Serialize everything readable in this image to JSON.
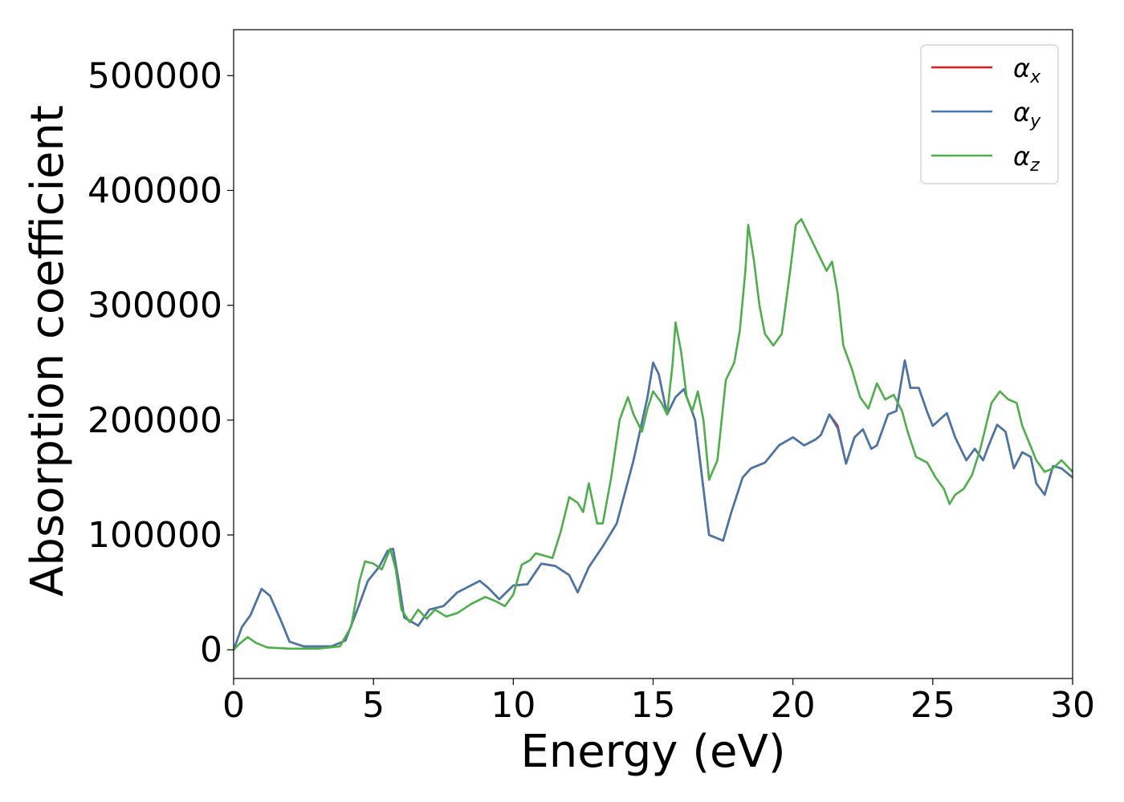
{
  "chart_data": {
    "type": "line",
    "xlabel": "Energy (eV)",
    "ylabel": "Absorption coefficient",
    "xlim": [
      0,
      30
    ],
    "ylim": [
      -25000,
      540000
    ],
    "x_ticks": [
      0,
      5,
      10,
      15,
      20,
      25,
      30
    ],
    "x_tick_labels": [
      "0",
      "5",
      "10",
      "15",
      "20",
      "25",
      "30"
    ],
    "y_ticks": [
      0,
      100000,
      200000,
      300000,
      400000,
      500000
    ],
    "y_tick_labels": [
      "0",
      "100000",
      "200000",
      "300000",
      "400000",
      "500000"
    ],
    "legend_position": "top-right",
    "grid": false,
    "series": [
      {
        "name": "α",
        "subscript": "x",
        "color": "#e41a1c",
        "points": [
          [
            0,
            0
          ],
          [
            0.3,
            20000
          ],
          [
            0.6,
            30000
          ],
          [
            1.0,
            53000
          ],
          [
            1.3,
            47000
          ],
          [
            1.7,
            25000
          ],
          [
            2.0,
            7000
          ],
          [
            2.5,
            3000
          ],
          [
            3.5,
            3000
          ],
          [
            4.0,
            8000
          ],
          [
            4.5,
            40000
          ],
          [
            4.8,
            60000
          ],
          [
            5.2,
            72000
          ],
          [
            5.5,
            86000
          ],
          [
            5.7,
            88000
          ],
          [
            5.9,
            60000
          ],
          [
            6.1,
            28000
          ],
          [
            6.6,
            21000
          ],
          [
            7.0,
            35000
          ],
          [
            7.5,
            38000
          ],
          [
            8.0,
            50000
          ],
          [
            8.4,
            55000
          ],
          [
            8.8,
            60000
          ],
          [
            9.1,
            54000
          ],
          [
            9.5,
            44000
          ],
          [
            10.0,
            56000
          ],
          [
            10.5,
            57000
          ],
          [
            11.0,
            75000
          ],
          [
            11.5,
            73000
          ],
          [
            12.0,
            65000
          ],
          [
            12.3,
            50000
          ],
          [
            12.7,
            72000
          ],
          [
            13.2,
            90000
          ],
          [
            13.7,
            110000
          ],
          [
            14.3,
            165000
          ],
          [
            14.8,
            220000
          ],
          [
            15.0,
            250000
          ],
          [
            15.2,
            240000
          ],
          [
            15.5,
            205000
          ],
          [
            15.8,
            220000
          ],
          [
            16.1,
            227000
          ],
          [
            16.5,
            200000
          ],
          [
            16.8,
            140000
          ],
          [
            17.0,
            100000
          ],
          [
            17.5,
            95000
          ],
          [
            17.8,
            120000
          ],
          [
            18.2,
            150000
          ],
          [
            18.5,
            158000
          ],
          [
            19.0,
            163000
          ],
          [
            19.5,
            178000
          ],
          [
            20.0,
            185000
          ],
          [
            20.4,
            178000
          ],
          [
            20.8,
            183000
          ],
          [
            21.0,
            187000
          ],
          [
            21.3,
            205000
          ],
          [
            21.6,
            195000
          ],
          [
            21.9,
            162000
          ],
          [
            22.2,
            185000
          ],
          [
            22.5,
            192000
          ],
          [
            22.8,
            175000
          ],
          [
            23.0,
            178000
          ],
          [
            23.4,
            205000
          ],
          [
            23.7,
            208000
          ],
          [
            24.0,
            252000
          ],
          [
            24.2,
            228000
          ],
          [
            24.5,
            228000
          ],
          [
            24.8,
            207000
          ],
          [
            25.0,
            195000
          ],
          [
            25.5,
            206000
          ],
          [
            25.8,
            185000
          ],
          [
            26.2,
            165000
          ],
          [
            26.5,
            175000
          ],
          [
            26.8,
            165000
          ],
          [
            27.0,
            178000
          ],
          [
            27.3,
            196000
          ],
          [
            27.6,
            190000
          ],
          [
            27.9,
            158000
          ],
          [
            28.2,
            172000
          ],
          [
            28.5,
            168000
          ],
          [
            28.7,
            145000
          ],
          [
            29.0,
            135000
          ],
          [
            29.3,
            160000
          ],
          [
            29.6,
            158000
          ],
          [
            30.0,
            150000
          ]
        ]
      },
      {
        "name": "α",
        "subscript": "y",
        "color": "#4477aa",
        "points": [
          [
            0,
            0
          ],
          [
            0.3,
            20000
          ],
          [
            0.6,
            30000
          ],
          [
            1.0,
            53000
          ],
          [
            1.3,
            47000
          ],
          [
            1.7,
            25000
          ],
          [
            2.0,
            7000
          ],
          [
            2.5,
            3000
          ],
          [
            3.5,
            3000
          ],
          [
            4.0,
            8000
          ],
          [
            4.5,
            40000
          ],
          [
            4.8,
            60000
          ],
          [
            5.2,
            72000
          ],
          [
            5.5,
            86000
          ],
          [
            5.7,
            88000
          ],
          [
            5.9,
            60000
          ],
          [
            6.1,
            28000
          ],
          [
            6.6,
            21000
          ],
          [
            7.0,
            35000
          ],
          [
            7.5,
            38000
          ],
          [
            8.0,
            50000
          ],
          [
            8.4,
            55000
          ],
          [
            8.8,
            60000
          ],
          [
            9.1,
            54000
          ],
          [
            9.5,
            44000
          ],
          [
            10.0,
            56000
          ],
          [
            10.5,
            57000
          ],
          [
            11.0,
            75000
          ],
          [
            11.5,
            73000
          ],
          [
            12.0,
            65000
          ],
          [
            12.3,
            50000
          ],
          [
            12.7,
            72000
          ],
          [
            13.2,
            90000
          ],
          [
            13.7,
            110000
          ],
          [
            14.3,
            165000
          ],
          [
            14.8,
            220000
          ],
          [
            15.0,
            250000
          ],
          [
            15.2,
            240000
          ],
          [
            15.5,
            205000
          ],
          [
            15.8,
            220000
          ],
          [
            16.1,
            227000
          ],
          [
            16.5,
            200000
          ],
          [
            16.8,
            140000
          ],
          [
            17.0,
            100000
          ],
          [
            17.5,
            95000
          ],
          [
            17.8,
            120000
          ],
          [
            18.2,
            150000
          ],
          [
            18.5,
            158000
          ],
          [
            19.0,
            163000
          ],
          [
            19.5,
            178000
          ],
          [
            20.0,
            185000
          ],
          [
            20.4,
            178000
          ],
          [
            20.8,
            183000
          ],
          [
            21.0,
            187000
          ],
          [
            21.3,
            205000
          ],
          [
            21.6,
            193000
          ],
          [
            21.9,
            162000
          ],
          [
            22.2,
            185000
          ],
          [
            22.5,
            192000
          ],
          [
            22.8,
            175000
          ],
          [
            23.0,
            178000
          ],
          [
            23.4,
            205000
          ],
          [
            23.7,
            208000
          ],
          [
            24.0,
            252000
          ],
          [
            24.2,
            228000
          ],
          [
            24.5,
            228000
          ],
          [
            24.8,
            207000
          ],
          [
            25.0,
            195000
          ],
          [
            25.5,
            206000
          ],
          [
            25.8,
            185000
          ],
          [
            26.2,
            165000
          ],
          [
            26.5,
            175000
          ],
          [
            26.8,
            165000
          ],
          [
            27.0,
            178000
          ],
          [
            27.3,
            196000
          ],
          [
            27.6,
            190000
          ],
          [
            27.9,
            158000
          ],
          [
            28.2,
            172000
          ],
          [
            28.5,
            168000
          ],
          [
            28.7,
            145000
          ],
          [
            29.0,
            135000
          ],
          [
            29.3,
            160000
          ],
          [
            29.6,
            158000
          ],
          [
            30.0,
            150000
          ]
        ]
      },
      {
        "name": "α",
        "subscript": "z",
        "color": "#4daf4a",
        "points": [
          [
            0,
            0
          ],
          [
            0.2,
            5000
          ],
          [
            0.5,
            11000
          ],
          [
            0.8,
            6000
          ],
          [
            1.2,
            2000
          ],
          [
            2.0,
            1000
          ],
          [
            3.0,
            1000
          ],
          [
            3.8,
            3000
          ],
          [
            4.2,
            20000
          ],
          [
            4.5,
            60000
          ],
          [
            4.7,
            77000
          ],
          [
            5.0,
            75000
          ],
          [
            5.3,
            70000
          ],
          [
            5.6,
            88000
          ],
          [
            5.8,
            70000
          ],
          [
            6.0,
            35000
          ],
          [
            6.3,
            24000
          ],
          [
            6.6,
            35000
          ],
          [
            6.9,
            27000
          ],
          [
            7.2,
            35000
          ],
          [
            7.6,
            29000
          ],
          [
            8.0,
            32000
          ],
          [
            8.5,
            40000
          ],
          [
            9.0,
            46000
          ],
          [
            9.4,
            42000
          ],
          [
            9.7,
            38000
          ],
          [
            10.0,
            48000
          ],
          [
            10.3,
            74000
          ],
          [
            10.6,
            78000
          ],
          [
            10.8,
            84000
          ],
          [
            11.1,
            82000
          ],
          [
            11.4,
            80000
          ],
          [
            11.7,
            103000
          ],
          [
            12.0,
            133000
          ],
          [
            12.3,
            128000
          ],
          [
            12.5,
            120000
          ],
          [
            12.7,
            145000
          ],
          [
            13.0,
            110000
          ],
          [
            13.2,
            110000
          ],
          [
            13.5,
            150000
          ],
          [
            13.8,
            200000
          ],
          [
            14.1,
            220000
          ],
          [
            14.3,
            205000
          ],
          [
            14.6,
            190000
          ],
          [
            14.8,
            210000
          ],
          [
            15.0,
            225000
          ],
          [
            15.3,
            215000
          ],
          [
            15.5,
            205000
          ],
          [
            15.7,
            250000
          ],
          [
            15.8,
            285000
          ],
          [
            16.0,
            260000
          ],
          [
            16.2,
            220000
          ],
          [
            16.4,
            208000
          ],
          [
            16.6,
            225000
          ],
          [
            16.8,
            200000
          ],
          [
            17.0,
            148000
          ],
          [
            17.3,
            165000
          ],
          [
            17.6,
            235000
          ],
          [
            17.9,
            250000
          ],
          [
            18.1,
            278000
          ],
          [
            18.3,
            330000
          ],
          [
            18.4,
            370000
          ],
          [
            18.6,
            340000
          ],
          [
            18.8,
            300000
          ],
          [
            19.0,
            275000
          ],
          [
            19.3,
            265000
          ],
          [
            19.6,
            275000
          ],
          [
            19.9,
            330000
          ],
          [
            20.1,
            370000
          ],
          [
            20.3,
            375000
          ],
          [
            20.6,
            360000
          ],
          [
            20.9,
            345000
          ],
          [
            21.2,
            330000
          ],
          [
            21.4,
            338000
          ],
          [
            21.6,
            310000
          ],
          [
            21.8,
            265000
          ],
          [
            22.1,
            245000
          ],
          [
            22.4,
            220000
          ],
          [
            22.7,
            210000
          ],
          [
            23.0,
            232000
          ],
          [
            23.3,
            218000
          ],
          [
            23.6,
            222000
          ],
          [
            23.9,
            208000
          ],
          [
            24.1,
            190000
          ],
          [
            24.4,
            168000
          ],
          [
            24.8,
            163000
          ],
          [
            25.1,
            150000
          ],
          [
            25.4,
            140000
          ],
          [
            25.6,
            127000
          ],
          [
            25.8,
            135000
          ],
          [
            26.1,
            140000
          ],
          [
            26.4,
            152000
          ],
          [
            26.7,
            175000
          ],
          [
            26.9,
            195000
          ],
          [
            27.1,
            215000
          ],
          [
            27.4,
            225000
          ],
          [
            27.7,
            218000
          ],
          [
            28.0,
            215000
          ],
          [
            28.2,
            195000
          ],
          [
            28.5,
            177000
          ],
          [
            28.7,
            165000
          ],
          [
            29.0,
            155000
          ],
          [
            29.3,
            158000
          ],
          [
            29.6,
            165000
          ],
          [
            30.0,
            155000
          ]
        ]
      }
    ]
  }
}
